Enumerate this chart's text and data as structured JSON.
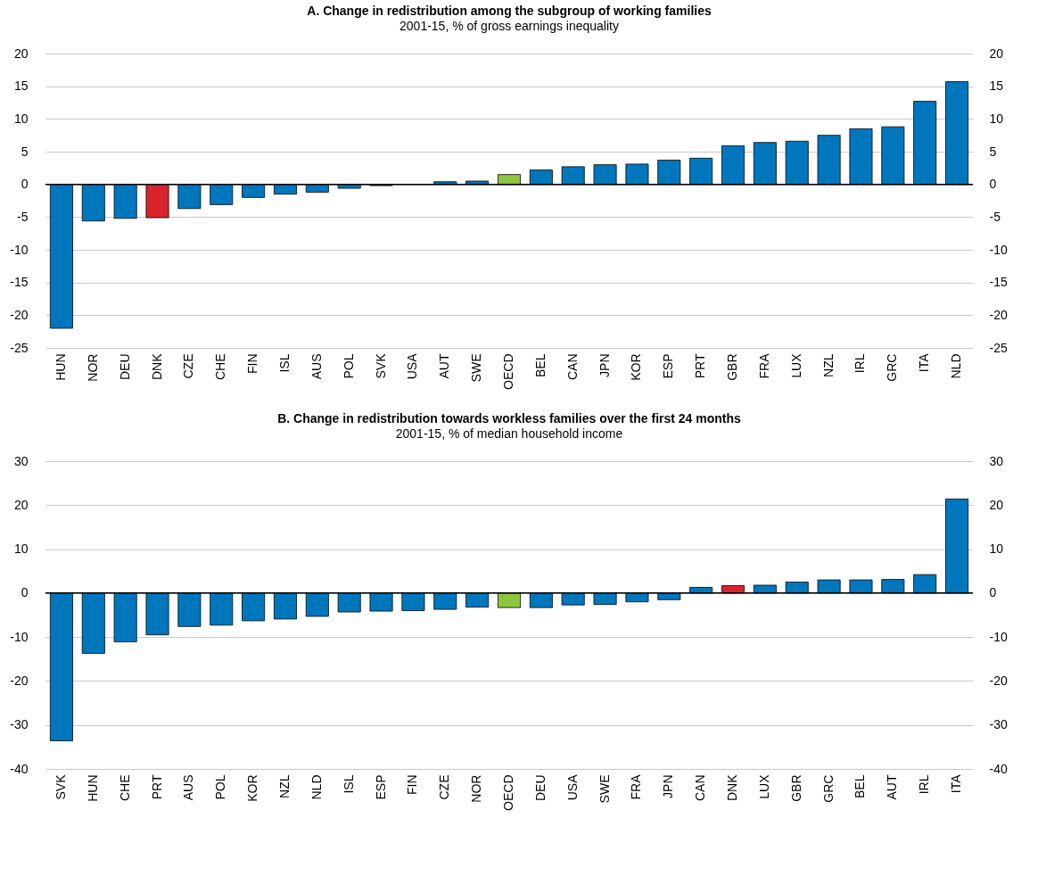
{
  "chart_data": [
    {
      "type": "bar",
      "title": "A. Change in redistribution among the subgroup of working families",
      "subtitle": "2001-15, % of gross earnings inequality",
      "categories": [
        "HUN",
        "NOR",
        "DEU",
        "DNK",
        "CZE",
        "CHE",
        "FIN",
        "ISL",
        "AUS",
        "POL",
        "SVK",
        "USA",
        "AUT",
        "SWE",
        "OECD",
        "BEL",
        "CAN",
        "JPN",
        "KOR",
        "ESP",
        "PRT",
        "GBR",
        "FRA",
        "LUX",
        "NZL",
        "IRL",
        "GRC",
        "ITA",
        "NLD"
      ],
      "values": [
        -22.0,
        -5.6,
        -5.2,
        -5.1,
        -3.7,
        -3.1,
        -2.0,
        -1.5,
        -1.2,
        -0.6,
        -0.2,
        0,
        0.4,
        0.5,
        1.5,
        2.2,
        2.7,
        3.0,
        3.1,
        3.7,
        4.0,
        5.9,
        6.4,
        6.6,
        7.5,
        8.5,
        8.8,
        12.7,
        15.7
      ],
      "colors": [
        "#0077bd",
        "#0077bd",
        "#0077bd",
        "#d7242b",
        "#0077bd",
        "#0077bd",
        "#0077bd",
        "#0077bd",
        "#0077bd",
        "#0077bd",
        "#0077bd",
        "#0077bd",
        "#0077bd",
        "#0077bd",
        "#8cc63f",
        "#0077bd",
        "#0077bd",
        "#0077bd",
        "#0077bd",
        "#0077bd",
        "#0077bd",
        "#0077bd",
        "#0077bd",
        "#0077bd",
        "#0077bd",
        "#0077bd",
        "#0077bd",
        "#0077bd",
        "#0077bd"
      ],
      "ylim": [
        -25,
        20
      ],
      "yticks": [
        -25,
        -20,
        -15,
        -10,
        -5,
        0,
        5,
        10,
        15,
        20
      ],
      "y2lim": [
        -25,
        20
      ],
      "y2ticks": [
        -25,
        -20,
        -15,
        -10,
        -5,
        0,
        5,
        10,
        15,
        20
      ],
      "grid": "y"
    },
    {
      "type": "bar",
      "title": "B. Change in redistribution towards workless families over the first 24 months",
      "subtitle": "2001-15, % of median household income",
      "categories": [
        "SVK",
        "HUN",
        "CHE",
        "PRT",
        "AUS",
        "POL",
        "KOR",
        "NZL",
        "NLD",
        "ISL",
        "ESP",
        "FIN",
        "CZE",
        "NOR",
        "OECD",
        "DEU",
        "USA",
        "SWE",
        "FRA",
        "JPN",
        "CAN",
        "DNK",
        "LUX",
        "GBR",
        "GRC",
        "BEL",
        "AUT",
        "IRL",
        "ITA"
      ],
      "values": [
        -33.6,
        -13.7,
        -11.1,
        -9.5,
        -7.6,
        -7.3,
        -6.3,
        -5.9,
        -5.3,
        -4.3,
        -4.1,
        -4.0,
        -3.7,
        -3.2,
        -3.3,
        -3.3,
        -2.7,
        -2.6,
        -2.0,
        -1.5,
        1.3,
        1.7,
        1.8,
        2.5,
        3.0,
        3.0,
        3.1,
        4.2,
        21.4
      ],
      "colors": [
        "#0077bd",
        "#0077bd",
        "#0077bd",
        "#0077bd",
        "#0077bd",
        "#0077bd",
        "#0077bd",
        "#0077bd",
        "#0077bd",
        "#0077bd",
        "#0077bd",
        "#0077bd",
        "#0077bd",
        "#0077bd",
        "#8cc63f",
        "#0077bd",
        "#0077bd",
        "#0077bd",
        "#0077bd",
        "#0077bd",
        "#0077bd",
        "#d7242b",
        "#0077bd",
        "#0077bd",
        "#0077bd",
        "#0077bd",
        "#0077bd",
        "#0077bd",
        "#0077bd"
      ],
      "ylim": [
        -40,
        30
      ],
      "yticks": [
        -40,
        -30,
        -20,
        -10,
        0,
        10,
        20,
        30
      ],
      "y2lim": [
        -40,
        30
      ],
      "y2ticks": [
        -40,
        -30,
        -20,
        -10,
        0,
        10,
        20,
        30
      ],
      "grid": "y"
    }
  ]
}
